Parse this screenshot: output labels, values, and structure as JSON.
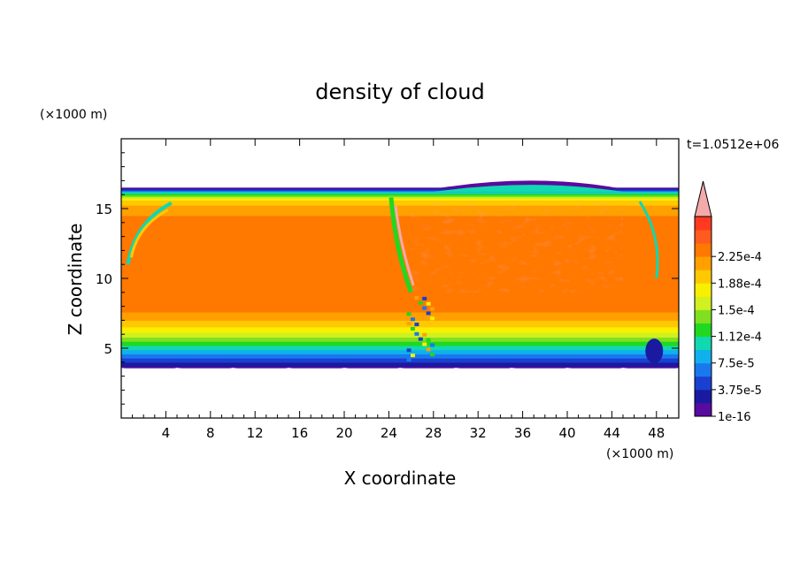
{
  "chart_data": {
    "type": "heatmap",
    "title": "density of cloud",
    "xlabel": "X coordinate",
    "ylabel": "Z coordinate",
    "x_unit": "(×1000 m)",
    "y_unit": "(×1000 m)",
    "time_label": "t=1.0512e+06",
    "xlim": [
      0,
      50
    ],
    "ylim": [
      0,
      20
    ],
    "x_ticks": [
      4,
      8,
      12,
      16,
      20,
      24,
      28,
      32,
      36,
      40,
      44,
      48
    ],
    "y_ticks": [
      5,
      10,
      15
    ],
    "colorbar": {
      "labels": [
        "1e-16",
        "3.75e-5",
        "7.5e-5",
        "1.12e-4",
        "1.5e-4",
        "1.88e-4",
        "2.25e-4"
      ],
      "colors": [
        "#5a0aa0",
        "#1a1aa0",
        "#1a40d0",
        "#1a78ee",
        "#10b0ee",
        "#10d8b0",
        "#20d820",
        "#80e020",
        "#d0f020",
        "#f8f000",
        "#ffc800",
        "#ffa000",
        "#ff7800",
        "#ff5a20",
        "#ff3a20",
        "#f5aaaa"
      ]
    },
    "vertical_profile": [
      {
        "z": 3.6,
        "value": 1e-16
      },
      {
        "z": 4.2,
        "value": 3.75e-05
      },
      {
        "z": 4.8,
        "value": 7.5e-05
      },
      {
        "z": 5.4,
        "value": 0.000112
      },
      {
        "z": 6.0,
        "value": 0.00015
      },
      {
        "z": 6.8,
        "value": 0.000188
      },
      {
        "z": 8.0,
        "value": 0.000225
      },
      {
        "z": 14.0,
        "value": 0.000225
      },
      {
        "z": 15.5,
        "value": 0.000188
      },
      {
        "z": 16.2,
        "value": 7.5e-05
      },
      {
        "z": 16.5,
        "value": 1e-16
      }
    ]
  }
}
